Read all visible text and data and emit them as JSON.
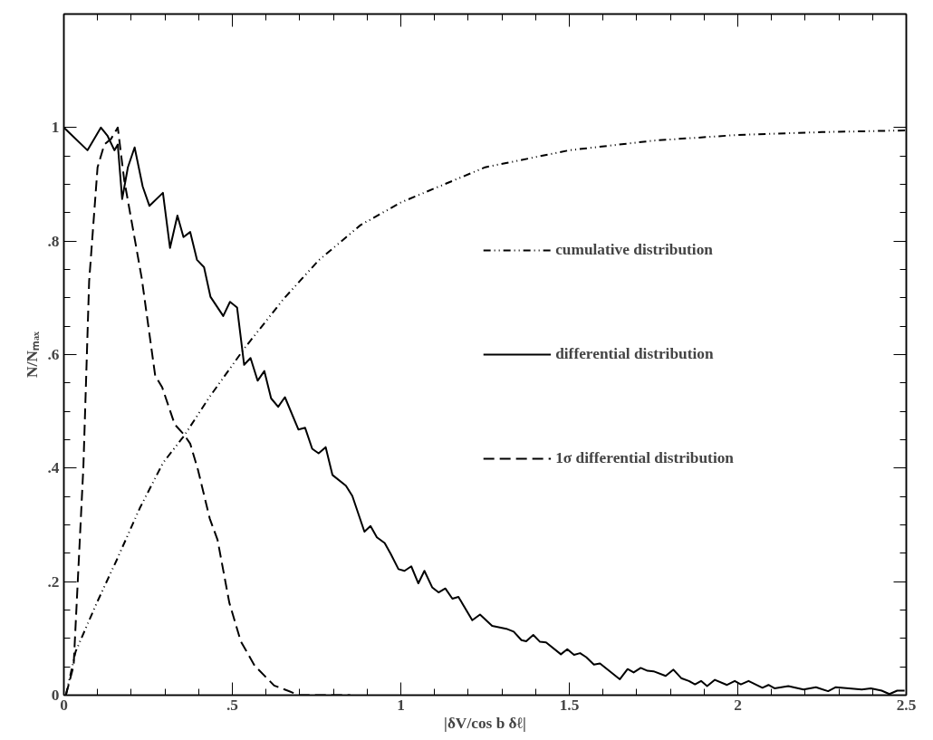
{
  "chart_data": {
    "type": "line",
    "xlabel": "|δV/cos b δℓ|",
    "ylabel": "N/Nₘₐₓ",
    "xlim": [
      0,
      2.5
    ],
    "ylim": [
      0,
      1.2
    ],
    "xticks": [
      0,
      {
        "value": 0.5,
        "label": ".5"
      },
      1,
      1.5,
      2,
      2.5
    ],
    "yticks": [
      0,
      {
        "value": 0.2,
        "label": ".2"
      },
      {
        "value": 0.4,
        "label": ".4"
      },
      {
        "value": 0.6,
        "label": ".6"
      },
      {
        "value": 0.8,
        "label": ".8"
      },
      1
    ],
    "grid": false,
    "legend": "right",
    "marker": "none",
    "series": [
      {
        "name": "cumulative distribution",
        "color": "#000000",
        "line_style": "dashdotdot",
        "x": [
          0.006,
          0.035,
          0.098,
          0.156,
          0.225,
          0.294,
          0.358,
          0.433,
          0.537,
          0.652,
          0.756,
          0.88,
          1.0,
          1.25,
          1.5,
          1.75,
          2.0,
          2.25,
          2.5
        ],
        "values": [
          0,
          0.077,
          0.163,
          0.237,
          0.329,
          0.409,
          0.458,
          0.526,
          0.612,
          0.698,
          0.766,
          0.828,
          0.868,
          0.93,
          0.96,
          0.977,
          0.987,
          0.992,
          0.995
        ]
      },
      {
        "name": "differential distribution",
        "color": "#000000",
        "line_style": "solid",
        "x": [
          0.0,
          0.07,
          0.11,
          0.13,
          0.15,
          0.16,
          0.173,
          0.19,
          0.21,
          0.234,
          0.254,
          0.294,
          0.315,
          0.337,
          0.355,
          0.375,
          0.395,
          0.416,
          0.435,
          0.473,
          0.493,
          0.514,
          0.535,
          0.554,
          0.575,
          0.595,
          0.615,
          0.636,
          0.656,
          0.696,
          0.716,
          0.737,
          0.756,
          0.777,
          0.797,
          0.837,
          0.856,
          0.892,
          0.91,
          0.929,
          0.952,
          0.97,
          0.993,
          1.011,
          1.031,
          1.052,
          1.07,
          1.093,
          1.112,
          1.132,
          1.153,
          1.171,
          1.212,
          1.235,
          1.271,
          1.313,
          1.335,
          1.358,
          1.372,
          1.393,
          1.413,
          1.431,
          1.475,
          1.494,
          1.514,
          1.532,
          1.55,
          1.573,
          1.591,
          1.65,
          1.673,
          1.691,
          1.712,
          1.732,
          1.75,
          1.786,
          1.809,
          1.832,
          1.855,
          1.873,
          1.891,
          1.909,
          1.932,
          1.968,
          1.991,
          2.009,
          2.032,
          2.073,
          2.091,
          2.109,
          2.15,
          2.195,
          2.232,
          2.268,
          2.291,
          2.368,
          2.395,
          2.427,
          2.45,
          2.473,
          2.495
        ],
        "values": [
          1.0,
          0.96,
          1.0,
          0.985,
          0.96,
          0.97,
          0.874,
          0.93,
          0.965,
          0.896,
          0.862,
          0.885,
          0.788,
          0.845,
          0.807,
          0.816,
          0.767,
          0.754,
          0.702,
          0.668,
          0.693,
          0.683,
          0.582,
          0.594,
          0.554,
          0.571,
          0.523,
          0.508,
          0.525,
          0.468,
          0.471,
          0.434,
          0.426,
          0.437,
          0.388,
          0.369,
          0.351,
          0.288,
          0.298,
          0.278,
          0.268,
          0.249,
          0.222,
          0.219,
          0.227,
          0.197,
          0.219,
          0.19,
          0.181,
          0.188,
          0.17,
          0.173,
          0.132,
          0.142,
          0.122,
          0.117,
          0.112,
          0.097,
          0.095,
          0.106,
          0.094,
          0.093,
          0.072,
          0.081,
          0.071,
          0.074,
          0.067,
          0.054,
          0.056,
          0.028,
          0.046,
          0.04,
          0.048,
          0.043,
          0.042,
          0.034,
          0.045,
          0.03,
          0.025,
          0.019,
          0.025,
          0.016,
          0.027,
          0.018,
          0.025,
          0.019,
          0.025,
          0.013,
          0.018,
          0.012,
          0.016,
          0.01,
          0.014,
          0.007,
          0.014,
          0.01,
          0.012,
          0.008,
          0.002,
          0.008,
          0.008
        ]
      },
      {
        "name": "1σ differential distribution",
        "color": "#000000",
        "line_style": "dashed",
        "x": [
          0.006,
          0.029,
          0.058,
          0.075,
          0.1,
          0.12,
          0.14,
          0.16,
          0.179,
          0.231,
          0.271,
          0.292,
          0.329,
          0.358,
          0.375,
          0.398,
          0.433,
          0.456,
          0.491,
          0.525,
          0.566,
          0.624,
          0.699,
          0.85
        ],
        "values": [
          0,
          0.052,
          0.403,
          0.729,
          0.93,
          0.97,
          0.98,
          1.0,
          0.908,
          0.735,
          0.563,
          0.542,
          0.477,
          0.458,
          0.443,
          0.397,
          0.311,
          0.274,
          0.163,
          0.095,
          0.052,
          0.017,
          0,
          0
        ]
      }
    ]
  }
}
